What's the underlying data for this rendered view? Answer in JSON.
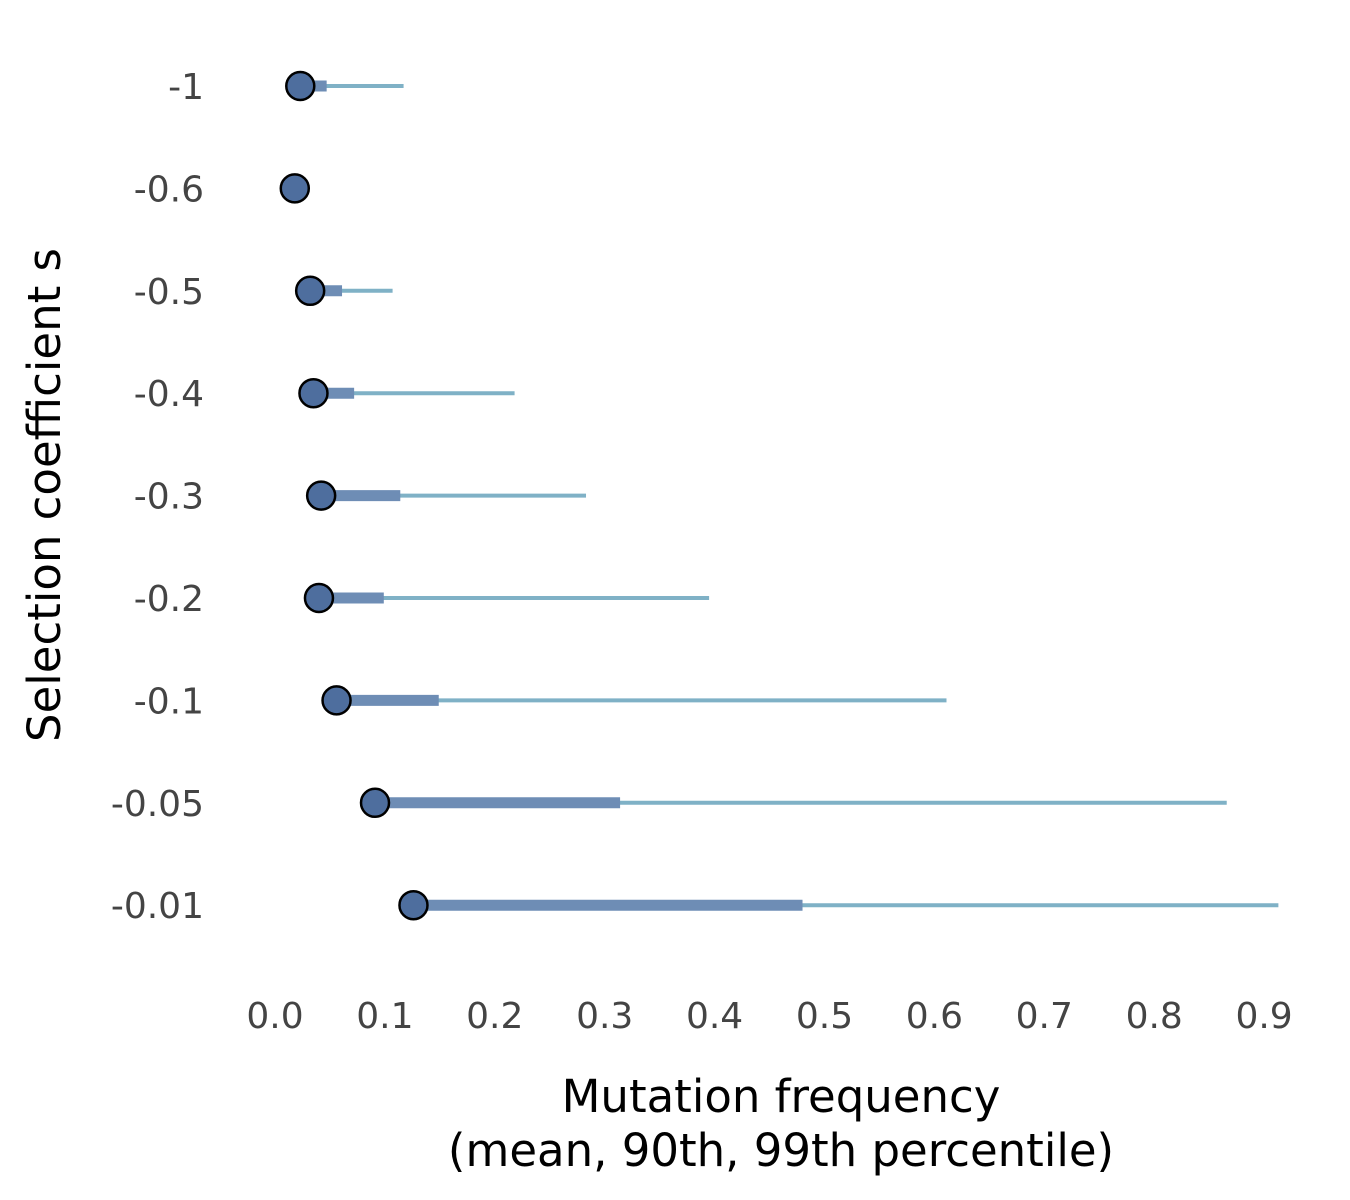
{
  "chart_data": {
    "type": "scatter",
    "title": "",
    "xlabel": "Mutation frequency",
    "xlabel_line2": "(mean, 90th, 99th percentile)",
    "ylabel": "Selection coefficient s",
    "xlim": [
      0.0,
      0.9
    ],
    "x_ticks": [
      "0.0",
      "0.1",
      "0.2",
      "0.3",
      "0.4",
      "0.5",
      "0.6",
      "0.7",
      "0.8",
      "0.9"
    ],
    "grid": false,
    "legend": "none",
    "colors": {
      "mean_point": "#4e6e9e",
      "p90_bar": "#6e8db5",
      "p99_line": "#7fb1c6",
      "point_stroke": "#000000"
    },
    "series": [
      {
        "s": "-1",
        "mean": 0.023,
        "p90": 0.047,
        "p99": 0.117
      },
      {
        "s": "-0.6",
        "mean": 0.018,
        "p90": 0.018,
        "p99": 0.018
      },
      {
        "s": "-0.5",
        "mean": 0.032,
        "p90": 0.061,
        "p99": 0.107
      },
      {
        "s": "-0.4",
        "mean": 0.035,
        "p90": 0.072,
        "p99": 0.218
      },
      {
        "s": "-0.3",
        "mean": 0.042,
        "p90": 0.114,
        "p99": 0.283
      },
      {
        "s": "-0.2",
        "mean": 0.04,
        "p90": 0.099,
        "p99": 0.395
      },
      {
        "s": "-0.1",
        "mean": 0.056,
        "p90": 0.149,
        "p99": 0.611
      },
      {
        "s": "-0.05",
        "mean": 0.091,
        "p90": 0.314,
        "p99": 0.866
      },
      {
        "s": "-0.01",
        "mean": 0.126,
        "p90": 0.48,
        "p99": 0.913
      }
    ]
  }
}
